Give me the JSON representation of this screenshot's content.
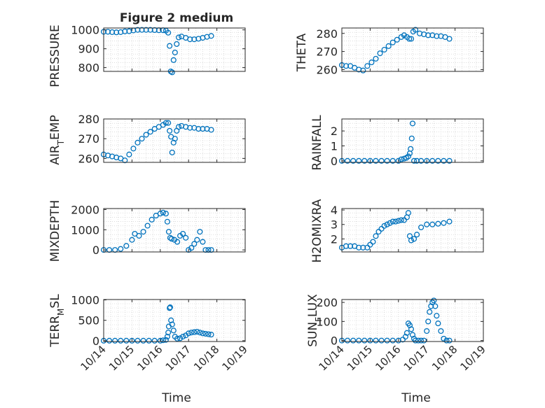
{
  "figure_title": "Figure 2 medium",
  "x_dates": [
    "10/14",
    "10/15",
    "10/16",
    "10/17",
    "10/18",
    "10/19"
  ],
  "x_label": "Time",
  "colors": {
    "marker": "#0072BD",
    "axis": "#262626",
    "grid": "#c8c8c8",
    "background": "#ffffff"
  },
  "chart_data": [
    {
      "type": "scatter",
      "ylabel": "PRESSURE",
      "ylim": [
        780,
        1010
      ],
      "yticks": [
        800,
        900,
        1000
      ],
      "xlim": [
        0,
        5
      ],
      "x": [
        0.0,
        0.15,
        0.3,
        0.45,
        0.6,
        0.75,
        0.9,
        1.05,
        1.2,
        1.35,
        1.5,
        1.65,
        1.8,
        1.95,
        2.1,
        2.2,
        2.28,
        2.33,
        2.37,
        2.42,
        2.47,
        2.52,
        2.58,
        2.65,
        2.75,
        2.9,
        3.05,
        3.2,
        3.35,
        3.5,
        3.65,
        3.8
      ],
      "y": [
        990,
        990,
        988,
        987,
        988,
        992,
        993,
        997,
        1000,
        1000,
        1000,
        1000,
        999,
        998,
        998,
        996,
        985,
        915,
        780,
        775,
        840,
        880,
        925,
        960,
        965,
        958,
        950,
        950,
        953,
        958,
        963,
        968
      ]
    },
    {
      "type": "scatter",
      "ylabel": "THETA",
      "ylim": [
        259,
        283
      ],
      "yticks": [
        260,
        270,
        280
      ],
      "xlim": [
        0,
        5
      ],
      "x": [
        0.0,
        0.15,
        0.3,
        0.45,
        0.6,
        0.75,
        0.9,
        1.05,
        1.2,
        1.35,
        1.5,
        1.65,
        1.8,
        1.95,
        2.1,
        2.2,
        2.3,
        2.38,
        2.45,
        2.52,
        2.6,
        2.75,
        2.9,
        3.05,
        3.2,
        3.35,
        3.5,
        3.65,
        3.8
      ],
      "y": [
        262.5,
        262,
        262,
        261,
        260,
        259.5,
        262,
        264,
        266,
        269,
        271,
        273,
        275,
        276.5,
        278,
        279,
        278,
        277,
        277,
        281,
        282,
        280,
        279.5,
        279,
        279,
        278.5,
        278.5,
        278,
        277
      ]
    },
    {
      "type": "scatter",
      "ylabel": "AIR_TEMP",
      "ylim": [
        258,
        280
      ],
      "yticks": [
        260,
        270,
        280
      ],
      "xlim": [
        0,
        5
      ],
      "x": [
        0.0,
        0.15,
        0.3,
        0.45,
        0.6,
        0.75,
        0.9,
        1.05,
        1.2,
        1.35,
        1.5,
        1.65,
        1.8,
        1.95,
        2.1,
        2.2,
        2.28,
        2.33,
        2.38,
        2.42,
        2.47,
        2.52,
        2.58,
        2.65,
        2.75,
        2.9,
        3.05,
        3.2,
        3.35,
        3.5,
        3.65,
        3.8
      ],
      "y": [
        262,
        261.5,
        261,
        260.5,
        260,
        259,
        262,
        265,
        268,
        270,
        272,
        273.5,
        275,
        276,
        277,
        278,
        278,
        274,
        271,
        263,
        268,
        270,
        274,
        276,
        276.5,
        276,
        275.5,
        275.5,
        275,
        275,
        275,
        274.5
      ]
    },
    {
      "type": "scatter",
      "ylabel": "RAINFALL",
      "ylim": [
        -0.1,
        2.8
      ],
      "yticks": [
        0,
        1,
        2
      ],
      "xlim": [
        0,
        5
      ],
      "x": [
        0.0,
        0.2,
        0.4,
        0.6,
        0.8,
        1.0,
        1.2,
        1.4,
        1.6,
        1.8,
        2.0,
        2.1,
        2.2,
        2.28,
        2.35,
        2.4,
        2.43,
        2.47,
        2.5,
        2.55,
        2.65,
        2.8,
        3.0,
        3.2,
        3.4,
        3.6,
        3.8
      ],
      "y": [
        0,
        0,
        0,
        0,
        0,
        0,
        0,
        0,
        0,
        0,
        0,
        0.1,
        0.15,
        0.2,
        0.3,
        0.5,
        0.8,
        1.5,
        2.5,
        0,
        0,
        0,
        0,
        0,
        0,
        0,
        0
      ]
    },
    {
      "type": "scatter",
      "ylabel": "MIXDEPTH",
      "ylim": [
        -100,
        2050
      ],
      "yticks": [
        0,
        1000,
        2000
      ],
      "xlim": [
        0,
        5
      ],
      "x": [
        0.0,
        0.2,
        0.4,
        0.6,
        0.8,
        1.0,
        1.1,
        1.25,
        1.4,
        1.55,
        1.7,
        1.85,
        2.0,
        2.1,
        2.2,
        2.25,
        2.3,
        2.35,
        2.4,
        2.5,
        2.6,
        2.7,
        2.8,
        2.9,
        3.0,
        3.1,
        3.2,
        3.3,
        3.4,
        3.5,
        3.6,
        3.7,
        3.8
      ],
      "y": [
        0,
        0,
        0,
        50,
        200,
        500,
        800,
        700,
        900,
        1200,
        1500,
        1700,
        1800,
        1850,
        1800,
        1400,
        900,
        600,
        550,
        500,
        400,
        700,
        800,
        600,
        0,
        100,
        300,
        500,
        900,
        400,
        0,
        0,
        0
      ]
    },
    {
      "type": "scatter",
      "ylabel": "H2OMIXRA",
      "ylim": [
        1.1,
        4.1
      ],
      "yticks": [
        2,
        3,
        4
      ],
      "xlim": [
        0,
        5
      ],
      "x": [
        0.0,
        0.15,
        0.3,
        0.45,
        0.6,
        0.75,
        0.9,
        1.0,
        1.1,
        1.2,
        1.3,
        1.4,
        1.5,
        1.6,
        1.7,
        1.8,
        1.9,
        2.0,
        2.1,
        2.2,
        2.3,
        2.35,
        2.4,
        2.45,
        2.55,
        2.65,
        2.8,
        3.0,
        3.2,
        3.4,
        3.6,
        3.8
      ],
      "y": [
        1.4,
        1.5,
        1.5,
        1.5,
        1.4,
        1.4,
        1.4,
        1.6,
        1.8,
        2.2,
        2.5,
        2.7,
        2.9,
        3.0,
        3.1,
        3.2,
        3.2,
        3.25,
        3.3,
        3.3,
        3.5,
        3.8,
        2.2,
        1.9,
        2.0,
        2.3,
        2.8,
        3.0,
        3.0,
        3.05,
        3.1,
        3.2
      ]
    },
    {
      "type": "scatter",
      "ylabel": "TERR_MSL",
      "ylim": [
        -20,
        1010
      ],
      "yticks": [
        0,
        500,
        1000
      ],
      "xlim": [
        0,
        5
      ],
      "x": [
        0.0,
        0.2,
        0.4,
        0.6,
        0.8,
        1.0,
        1.2,
        1.4,
        1.6,
        1.8,
        2.0,
        2.1,
        2.2,
        2.25,
        2.28,
        2.3,
        2.33,
        2.35,
        2.38,
        2.42,
        2.47,
        2.52,
        2.6,
        2.7,
        2.8,
        2.9,
        3.0,
        3.1,
        3.2,
        3.3,
        3.4,
        3.5,
        3.6,
        3.7,
        3.8
      ],
      "y": [
        0,
        0,
        0,
        0,
        0,
        0,
        0,
        0,
        0,
        0,
        0,
        10,
        20,
        100,
        200,
        350,
        800,
        820,
        500,
        400,
        250,
        100,
        50,
        60,
        100,
        130,
        180,
        200,
        210,
        220,
        200,
        180,
        170,
        160,
        150
      ]
    },
    {
      "type": "scatter",
      "ylabel": "SUN_FLUX",
      "ylim": [
        -5,
        215
      ],
      "yticks": [
        0,
        100,
        200
      ],
      "xlim": [
        0,
        5
      ],
      "x": [
        0.0,
        0.2,
        0.4,
        0.6,
        0.8,
        1.0,
        1.2,
        1.4,
        1.6,
        1.8,
        2.0,
        2.15,
        2.25,
        2.3,
        2.35,
        2.4,
        2.45,
        2.5,
        2.55,
        2.6,
        2.7,
        2.8,
        2.9,
        3.0,
        3.05,
        3.1,
        3.15,
        3.2,
        3.25,
        3.3,
        3.35,
        3.4,
        3.5,
        3.6,
        3.7,
        3.8
      ],
      "y": [
        0,
        0,
        0,
        0,
        0,
        0,
        0,
        0,
        0,
        0,
        0,
        5,
        20,
        40,
        90,
        80,
        60,
        30,
        10,
        0,
        0,
        0,
        0,
        50,
        100,
        150,
        180,
        200,
        210,
        180,
        130,
        90,
        50,
        10,
        0,
        0
      ]
    }
  ]
}
